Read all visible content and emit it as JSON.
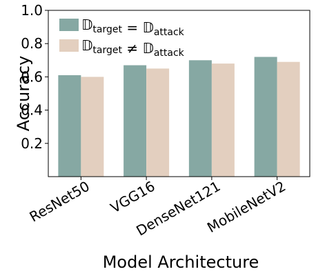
{
  "chart_data": {
    "type": "bar",
    "categories": [
      "ResNet50",
      "VGG16",
      "DenseNet121",
      "MobileNetV2"
    ],
    "series": [
      {
        "name_main": "𝔻",
        "name_sub1": "target",
        "name_op": " = ",
        "name_main2": "𝔻",
        "name_sub2": "attack",
        "color": "#86a8a3",
        "values": [
          0.61,
          0.67,
          0.7,
          0.72
        ]
      },
      {
        "name_main": "𝔻",
        "name_sub1": "target",
        "name_op": " ≠ ",
        "name_main2": "𝔻",
        "name_sub2": "attack",
        "color": "#e3cfbf",
        "values": [
          0.6,
          0.65,
          0.68,
          0.69
        ]
      }
    ],
    "xlabel": "Model Architecture",
    "ylabel": "Accuracy",
    "ylim": [
      0.0,
      1.0
    ],
    "yticks": [
      0.2,
      0.4,
      0.6,
      0.8,
      1.0
    ],
    "ytick_labels": [
      "0.2",
      "0.4",
      "0.6",
      "0.8",
      "1.0"
    ],
    "grid": false,
    "legend": "top-left"
  }
}
